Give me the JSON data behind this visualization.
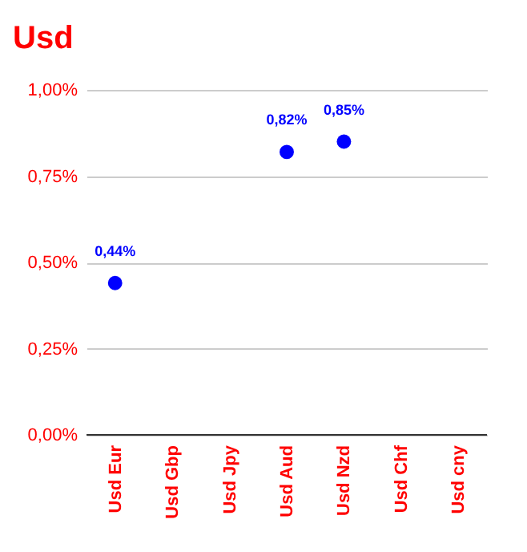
{
  "chart_data": {
    "type": "scatter",
    "title": "Usd",
    "categories": [
      "Usd Eur",
      "Usd Gbp",
      "Usd Jpy",
      "Usd Aud",
      "Usd Nzd",
      "Usd Chf",
      "Usd cny"
    ],
    "series": [
      {
        "color": "#0000ff",
        "values": [
          0.44,
          null,
          null,
          0.82,
          0.85,
          null,
          null
        ],
        "value_labels": [
          "0,44%",
          null,
          null,
          "0,82%",
          "0,85%",
          null,
          null
        ]
      }
    ],
    "ylim": [
      0,
      1
    ],
    "yticks": [
      {
        "value": 0,
        "label": "0,00%"
      },
      {
        "value": 0.25,
        "label": "0,25%"
      },
      {
        "value": 0.5,
        "label": "0,50%"
      },
      {
        "value": 0.75,
        "label": "0,75%"
      },
      {
        "value": 1,
        "label": "1,00%"
      }
    ],
    "grid": "y",
    "marker": "circle"
  }
}
